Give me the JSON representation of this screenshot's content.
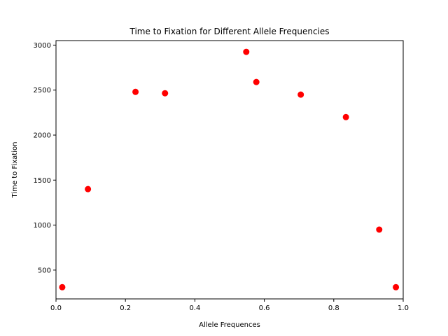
{
  "chart_data": {
    "type": "scatter",
    "title": "Time to Fixation for Different Allele Frequencies",
    "xlabel": "Allele Frequences",
    "ylabel": "Time to Fixation",
    "xlim": [
      0,
      1
    ],
    "ylim": [
      180,
      3050
    ],
    "xticks": [
      0.0,
      0.2,
      0.4,
      0.6,
      0.8,
      1.0
    ],
    "xtick_labels": [
      "0.0",
      "0.2",
      "0.4",
      "0.6",
      "0.8",
      "1.0"
    ],
    "yticks": [
      500,
      1000,
      1500,
      2000,
      2500,
      3000
    ],
    "ytick_labels": [
      "500",
      "1000",
      "1500",
      "2000",
      "2500",
      "3000"
    ],
    "grid": false,
    "marker_color": "#ff0000",
    "series": [
      {
        "x": [
          0.018,
          0.092,
          0.229,
          0.314,
          0.548,
          0.577,
          0.705,
          0.835,
          0.931,
          0.979
        ],
        "y": [
          310,
          1400,
          2480,
          2465,
          2925,
          2590,
          2450,
          2200,
          950,
          310
        ]
      }
    ]
  }
}
